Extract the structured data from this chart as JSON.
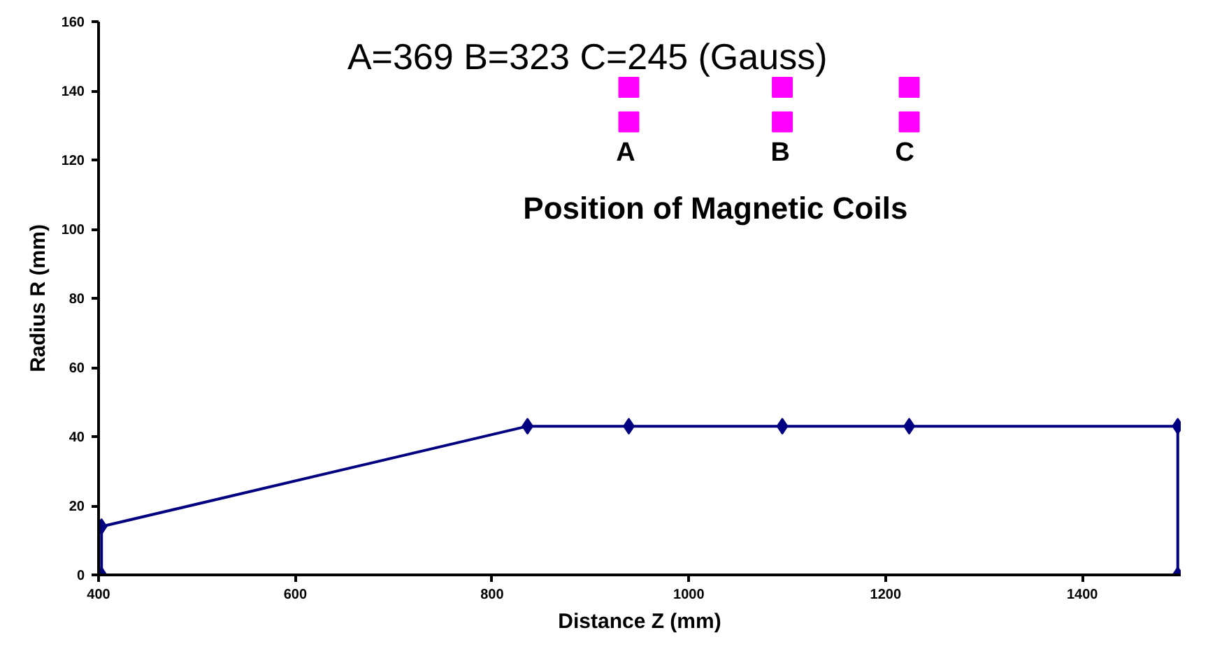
{
  "chart_data": {
    "type": "line",
    "xlabel": "Distance Z (mm)",
    "ylabel": "Radius R (mm)",
    "xlim": [
      400,
      1500
    ],
    "ylim": [
      0,
      160
    ],
    "xticks": [
      400,
      600,
      800,
      1000,
      1200,
      1400
    ],
    "yticks": [
      0,
      20,
      40,
      60,
      80,
      100,
      120,
      140,
      160
    ],
    "grid": false,
    "series": [
      {
        "color": "#000080",
        "marker": "diamond",
        "x": [
          403,
          403,
          836,
          939,
          1095,
          1224,
          1497,
          1497
        ],
        "values": [
          0,
          14,
          43,
          43,
          43,
          43,
          43,
          0
        ]
      },
      {
        "type": "scatter",
        "color": "#ff00ff",
        "marker": "square",
        "x": [
          939,
          1095,
          1224,
          939,
          1095,
          1224
        ],
        "values": [
          141,
          141,
          141,
          131,
          131,
          131
        ]
      }
    ],
    "annotations": [
      "A=369   B=323   C=245  (Gauss)",
      "A",
      "B",
      "C",
      "Position of Magnetic Coils"
    ]
  }
}
